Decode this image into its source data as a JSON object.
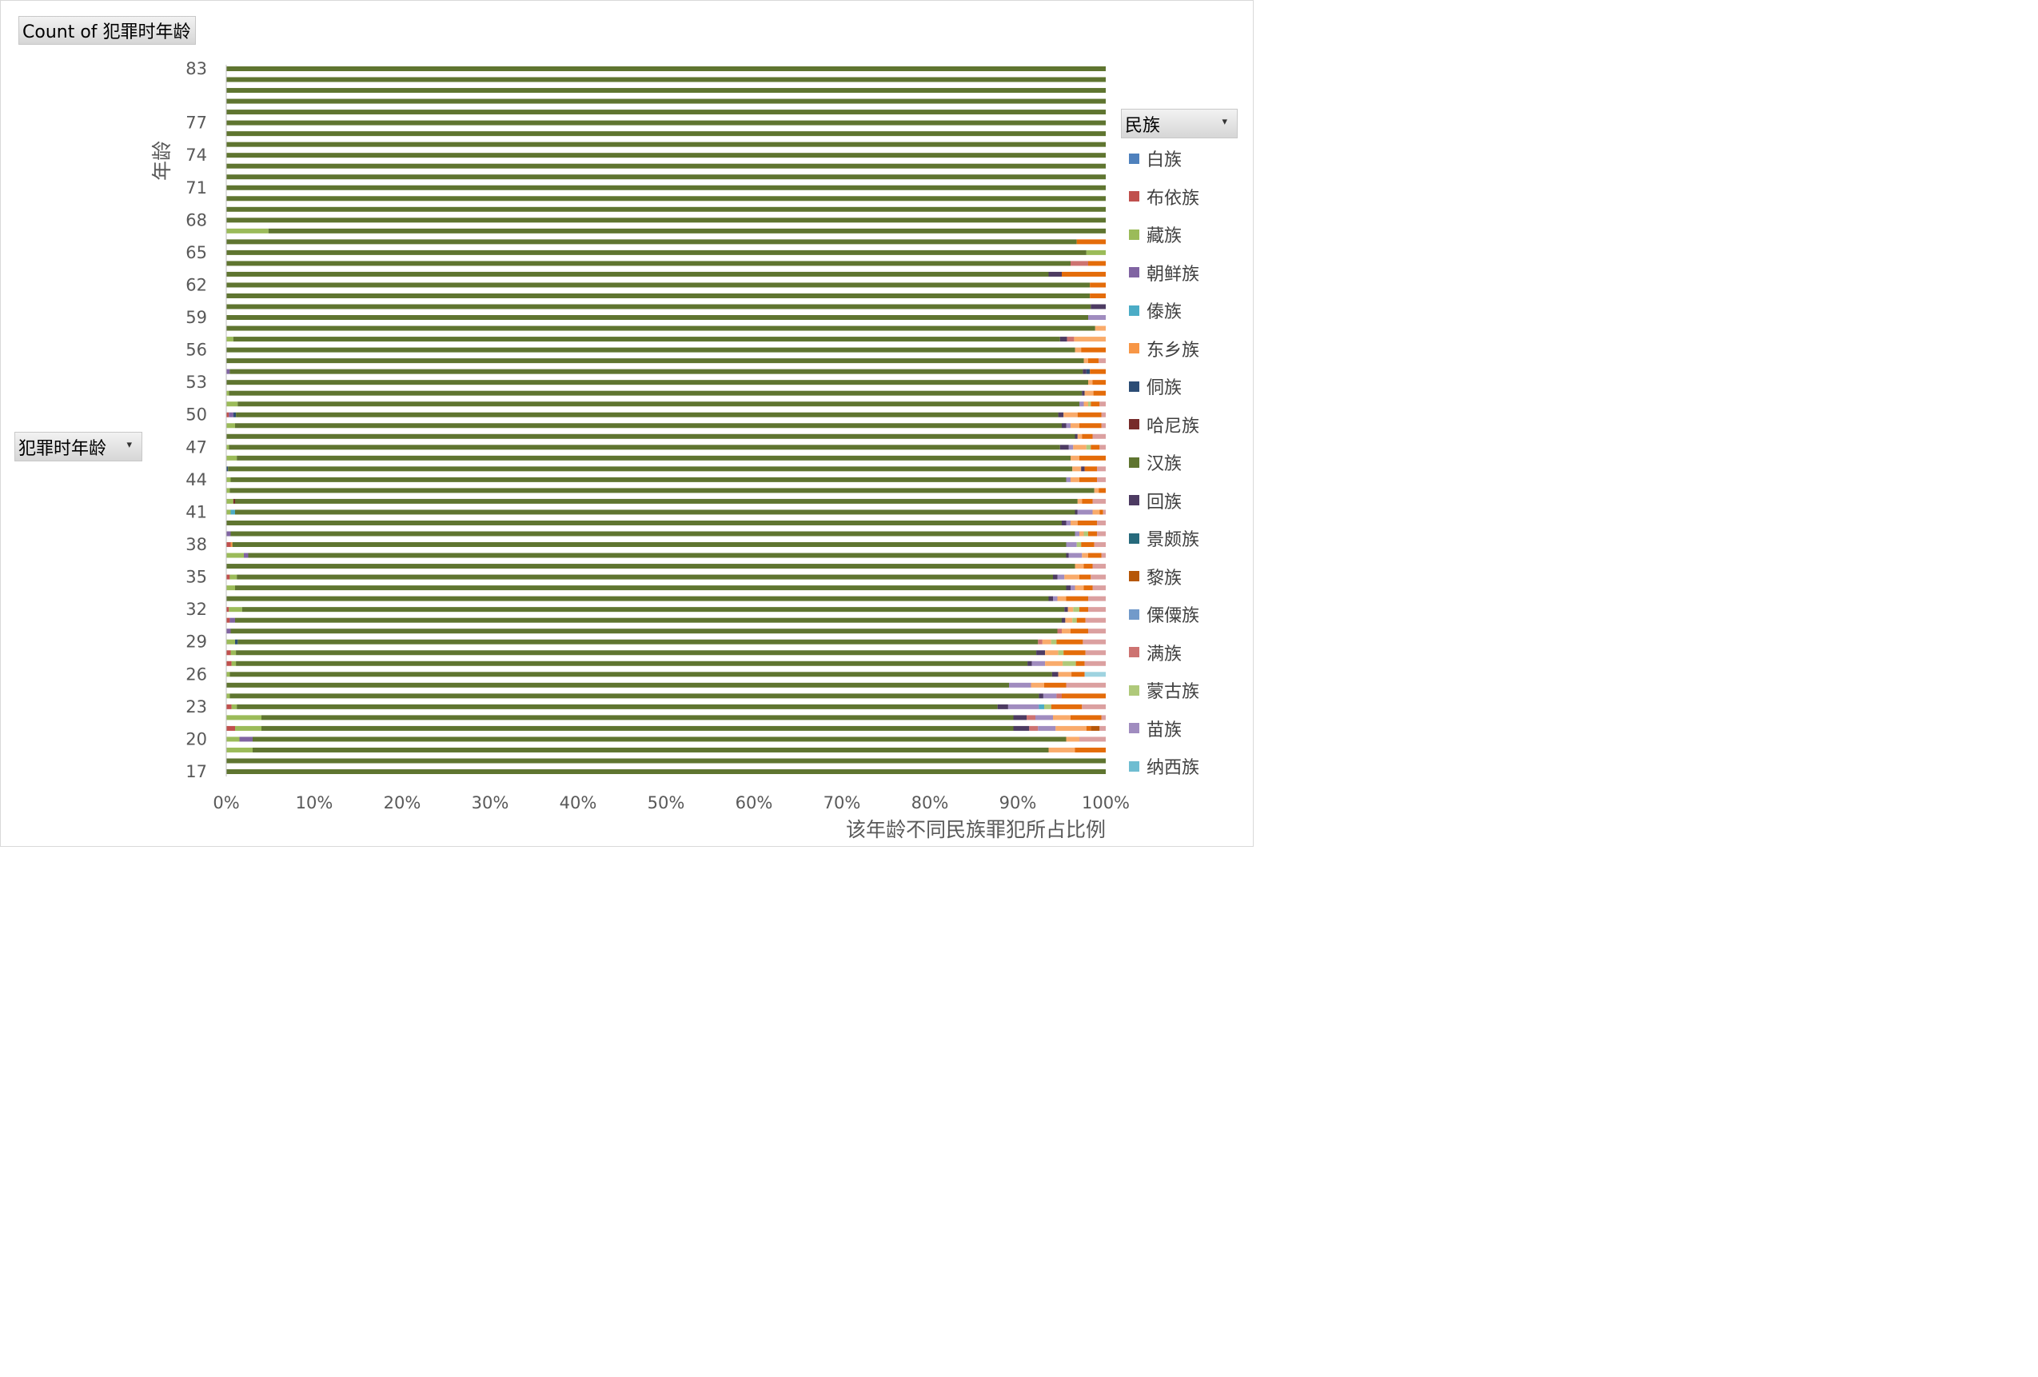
{
  "pivot": {
    "value_field": "Count of 犯罪时年龄",
    "row_field": "犯罪时年龄",
    "legend_field": "民族",
    "dropdown_glyph": "▾"
  },
  "chart_data": {
    "type": "bar",
    "orientation": "horizontal",
    "stacked": "percent",
    "xlabel": "该年龄不同民族罪犯所占比例",
    "ylabel": "年龄",
    "xlim": [
      0,
      1
    ],
    "xticks": [
      "0%",
      "10%",
      "20%",
      "30%",
      "40%",
      "50%",
      "60%",
      "70%",
      "80%",
      "90%",
      "100%"
    ],
    "yticks_shown": [
      "17",
      "20",
      "23",
      "26",
      "29",
      "32",
      "35",
      "38",
      "41",
      "44",
      "47",
      "50",
      "53",
      "56",
      "59",
      "62",
      "65",
      "68",
      "71",
      "74",
      "77",
      "83"
    ],
    "categories": [
      "17",
      "18",
      "19",
      "20",
      "21",
      "22",
      "23",
      "24",
      "25",
      "26",
      "27",
      "28",
      "29",
      "30",
      "31",
      "32",
      "33",
      "34",
      "35",
      "36",
      "37",
      "38",
      "39",
      "40",
      "41",
      "42",
      "43",
      "44",
      "45",
      "46",
      "47",
      "48",
      "49",
      "50",
      "51",
      "52",
      "53",
      "54",
      "55",
      "56",
      "57",
      "58",
      "59",
      "60",
      "61",
      "62",
      "63",
      "64",
      "65",
      "66",
      "67",
      "68",
      "69",
      "70",
      "71",
      "72",
      "73",
      "74",
      "75",
      "76",
      "77",
      "78",
      "79",
      "80",
      "81",
      "83"
    ],
    "legend": [
      "白族",
      "布依族",
      "藏族",
      "朝鲜族",
      "傣族",
      "东乡族",
      "侗族",
      "哈尼族",
      "汉族",
      "回族",
      "景颇族",
      "黎族",
      "傈僳族",
      "满族",
      "蒙古族",
      "苗族",
      "纳西族"
    ],
    "series": [
      {
        "name": "白族",
        "color": "#4f81bd"
      },
      {
        "name": "布依族",
        "color": "#c0504d"
      },
      {
        "name": "藏族",
        "color": "#9bbb59"
      },
      {
        "name": "朝鲜族",
        "color": "#8064a2"
      },
      {
        "name": "傣族",
        "color": "#4bacc6"
      },
      {
        "name": "东乡族",
        "color": "#f79646"
      },
      {
        "name": "侗族",
        "color": "#2c4d75"
      },
      {
        "name": "哈尼族",
        "color": "#772c2a"
      },
      {
        "name": "汉族",
        "color": "#5f7530"
      },
      {
        "name": "回族",
        "color": "#4d3b62"
      },
      {
        "name": "景颇族",
        "color": "#276a7c"
      },
      {
        "name": "黎族",
        "color": "#b65708"
      },
      {
        "name": "傈僳族",
        "color": "#729aca"
      },
      {
        "name": "满族",
        "color": "#cd7371"
      },
      {
        "name": "蒙古族",
        "color": "#afc97a"
      },
      {
        "name": "苗族",
        "color": "#a08cbf"
      },
      {
        "name": "纳西族",
        "color": "#6fbdd1"
      },
      {
        "name": "",
        "color": "#f9ab6b"
      },
      {
        "name": "",
        "color": "#e46c0a"
      },
      {
        "name": "",
        "color": "#dba0a0"
      },
      {
        "name": "",
        "color": "#c2afd8"
      },
      {
        "name": "",
        "color": "#9fd3e0"
      }
    ],
    "rows": {
      "17": [
        [
          8,
          1.0
        ]
      ],
      "18": [
        [
          8,
          1.0
        ]
      ],
      "19": [
        [
          2,
          0.03
        ],
        [
          8,
          0.905
        ],
        [
          17,
          0.03
        ],
        [
          18,
          0.035
        ]
      ],
      "20": [
        [
          2,
          0.015
        ],
        [
          3,
          0.015
        ],
        [
          8,
          0.925
        ],
        [
          17,
          0.015
        ],
        [
          19,
          0.03
        ]
      ],
      "21": [
        [
          1,
          0.01
        ],
        [
          2,
          0.03
        ],
        [
          8,
          0.855
        ],
        [
          9,
          0.018
        ],
        [
          13,
          0.01
        ],
        [
          15,
          0.02
        ],
        [
          17,
          0.035
        ],
        [
          18,
          0.005
        ],
        [
          11,
          0.01
        ],
        [
          19,
          0.007
        ]
      ],
      "22": [
        [
          2,
          0.04
        ],
        [
          8,
          0.855
        ],
        [
          9,
          0.015
        ],
        [
          13,
          0.01
        ],
        [
          15,
          0.02
        ],
        [
          17,
          0.02
        ],
        [
          18,
          0.035
        ],
        [
          19,
          0.005
        ]
      ],
      "23": [
        [
          1,
          0.006
        ],
        [
          2,
          0.006
        ],
        [
          8,
          0.865
        ],
        [
          9,
          0.012
        ],
        [
          15,
          0.035
        ],
        [
          4,
          0.006
        ],
        [
          14,
          0.008
        ],
        [
          18,
          0.035
        ],
        [
          19,
          0.027
        ]
      ],
      "24": [
        [
          2,
          0.004
        ],
        [
          8,
          0.92
        ],
        [
          9,
          0.005
        ],
        [
          15,
          0.015
        ],
        [
          13,
          0.006
        ],
        [
          18,
          0.05
        ]
      ],
      "25": [
        [
          8,
          0.89
        ],
        [
          15,
          0.025
        ],
        [
          17,
          0.015
        ],
        [
          18,
          0.025
        ],
        [
          19,
          0.045
        ]
      ],
      "26": [
        [
          2,
          0.004
        ],
        [
          8,
          0.935
        ],
        [
          9,
          0.007
        ],
        [
          17,
          0.015
        ],
        [
          18,
          0.015
        ],
        [
          21,
          0.024
        ]
      ],
      "27": [
        [
          1,
          0.006
        ],
        [
          2,
          0.005
        ],
        [
          8,
          0.9
        ],
        [
          9,
          0.005
        ],
        [
          15,
          0.015
        ],
        [
          17,
          0.02
        ],
        [
          14,
          0.015
        ],
        [
          18,
          0.01
        ],
        [
          19,
          0.024
        ]
      ],
      "28": [
        [
          1,
          0.005
        ],
        [
          2,
          0.006
        ],
        [
          8,
          0.91
        ],
        [
          9,
          0.01
        ],
        [
          17,
          0.015
        ],
        [
          14,
          0.006
        ],
        [
          18,
          0.025
        ],
        [
          19,
          0.023
        ]
      ],
      "29": [
        [
          2,
          0.01
        ],
        [
          6,
          0.003
        ],
        [
          8,
          0.91
        ],
        [
          13,
          0.005
        ],
        [
          17,
          0.01
        ],
        [
          14,
          0.006
        ],
        [
          18,
          0.03
        ],
        [
          19,
          0.026
        ]
      ],
      "30": [
        [
          3,
          0.005
        ],
        [
          8,
          0.94
        ],
        [
          13,
          0.005
        ],
        [
          17,
          0.01
        ],
        [
          18,
          0.02
        ],
        [
          19,
          0.02
        ]
      ],
      "31": [
        [
          1,
          0.004
        ],
        [
          3,
          0.006
        ],
        [
          8,
          0.94
        ],
        [
          9,
          0.004
        ],
        [
          17,
          0.008
        ],
        [
          14,
          0.005
        ],
        [
          18,
          0.01
        ],
        [
          19,
          0.023
        ]
      ],
      "32": [
        [
          1,
          0.003
        ],
        [
          2,
          0.015
        ],
        [
          8,
          0.935
        ],
        [
          9,
          0.004
        ],
        [
          17,
          0.006
        ],
        [
          14,
          0.007
        ],
        [
          18,
          0.01
        ],
        [
          19,
          0.02
        ]
      ],
      "33": [
        [
          8,
          0.935
        ],
        [
          9,
          0.005
        ],
        [
          15,
          0.005
        ],
        [
          17,
          0.01
        ],
        [
          18,
          0.025
        ],
        [
          19,
          0.02
        ]
      ],
      "34": [
        [
          2,
          0.01
        ],
        [
          8,
          0.945
        ],
        [
          9,
          0.005
        ],
        [
          15,
          0.005
        ],
        [
          17,
          0.01
        ],
        [
          18,
          0.01
        ],
        [
          19,
          0.015
        ]
      ],
      "35": [
        [
          1,
          0.004
        ],
        [
          2,
          0.008
        ],
        [
          8,
          0.928
        ],
        [
          9,
          0.005
        ],
        [
          15,
          0.008
        ],
        [
          17,
          0.017
        ],
        [
          18,
          0.013
        ],
        [
          19,
          0.017
        ]
      ],
      "36": [
        [
          8,
          0.965
        ],
        [
          17,
          0.01
        ],
        [
          18,
          0.01
        ],
        [
          19,
          0.015
        ]
      ],
      "37": [
        [
          2,
          0.02
        ],
        [
          3,
          0.005
        ],
        [
          8,
          0.93
        ],
        [
          9,
          0.003
        ],
        [
          15,
          0.015
        ],
        [
          17,
          0.007
        ],
        [
          18,
          0.015
        ],
        [
          19,
          0.005
        ]
      ],
      "38": [
        [
          1,
          0.005
        ],
        [
          5,
          0.002
        ],
        [
          8,
          0.948
        ],
        [
          15,
          0.012
        ],
        [
          14,
          0.005
        ],
        [
          18,
          0.015
        ],
        [
          19,
          0.013
        ]
      ],
      "39": [
        [
          3,
          0.005
        ],
        [
          8,
          0.96
        ],
        [
          15,
          0.005
        ],
        [
          17,
          0.005
        ],
        [
          14,
          0.005
        ],
        [
          18,
          0.01
        ],
        [
          19,
          0.01
        ]
      ],
      "40": [
        [
          8,
          0.95
        ],
        [
          9,
          0.005
        ],
        [
          15,
          0.005
        ],
        [
          17,
          0.008
        ],
        [
          18,
          0.022
        ],
        [
          19,
          0.01
        ]
      ],
      "41": [
        [
          2,
          0.005
        ],
        [
          4,
          0.005
        ],
        [
          8,
          0.955
        ],
        [
          9,
          0.003
        ],
        [
          15,
          0.017
        ],
        [
          17,
          0.008
        ],
        [
          18,
          0.004
        ],
        [
          19,
          0.003
        ]
      ],
      "42": [
        [
          2,
          0.008
        ],
        [
          7,
          0.002
        ],
        [
          8,
          0.958
        ],
        [
          17,
          0.005
        ],
        [
          18,
          0.012
        ],
        [
          19,
          0.015
        ]
      ],
      "43": [
        [
          2,
          0.004
        ],
        [
          8,
          0.983
        ],
        [
          17,
          0.005
        ],
        [
          18,
          0.008
        ]
      ],
      "44": [
        [
          2,
          0.005
        ],
        [
          8,
          0.95
        ],
        [
          15,
          0.005
        ],
        [
          17,
          0.01
        ],
        [
          18,
          0.02
        ],
        [
          19,
          0.01
        ]
      ],
      "45": [
        [
          6,
          0.002
        ],
        [
          8,
          0.96
        ],
        [
          17,
          0.01
        ],
        [
          9,
          0.004
        ],
        [
          18,
          0.014
        ],
        [
          19,
          0.01
        ]
      ],
      "46": [
        [
          2,
          0.012
        ],
        [
          8,
          0.948
        ],
        [
          17,
          0.01
        ],
        [
          18,
          0.03
        ]
      ],
      "47": [
        [
          2,
          0.003
        ],
        [
          8,
          0.945
        ],
        [
          9,
          0.01
        ],
        [
          15,
          0.005
        ],
        [
          17,
          0.015
        ],
        [
          14,
          0.005
        ],
        [
          18,
          0.01
        ],
        [
          19,
          0.007
        ]
      ],
      "48": [
        [
          8,
          0.965
        ],
        [
          9,
          0.003
        ],
        [
          17,
          0.005
        ],
        [
          18,
          0.012
        ],
        [
          19,
          0.015
        ]
      ],
      "49": [
        [
          2,
          0.01
        ],
        [
          8,
          0.94
        ],
        [
          9,
          0.005
        ],
        [
          15,
          0.005
        ],
        [
          17,
          0.01
        ],
        [
          18,
          0.025
        ],
        [
          19,
          0.005
        ]
      ],
      "50": [
        [
          1,
          0.003
        ],
        [
          3,
          0.005
        ],
        [
          6,
          0.003
        ],
        [
          8,
          0.935
        ],
        [
          9,
          0.006
        ],
        [
          17,
          0.016
        ],
        [
          18,
          0.027
        ],
        [
          19,
          0.005
        ]
      ],
      "51": [
        [
          2,
          0.013
        ],
        [
          8,
          0.957
        ],
        [
          15,
          0.005
        ],
        [
          17,
          0.005
        ],
        [
          14,
          0.003
        ],
        [
          18,
          0.01
        ],
        [
          19,
          0.007
        ]
      ],
      "52": [
        [
          2,
          0.003
        ],
        [
          8,
          0.97
        ],
        [
          9,
          0.003
        ],
        [
          17,
          0.01
        ],
        [
          18,
          0.014
        ]
      ],
      "53": [
        [
          8,
          0.98
        ],
        [
          17,
          0.005
        ],
        [
          18,
          0.015
        ]
      ],
      "54": [
        [
          3,
          0.004
        ],
        [
          8,
          0.97
        ],
        [
          9,
          0.004
        ],
        [
          6,
          0.004
        ],
        [
          18,
          0.018
        ]
      ],
      "55": [
        [
          8,
          0.975
        ],
        [
          17,
          0.005
        ],
        [
          18,
          0.012
        ],
        [
          19,
          0.008
        ]
      ],
      "56": [
        [
          8,
          0.965
        ],
        [
          17,
          0.007
        ],
        [
          18,
          0.028
        ]
      ],
      "57": [
        [
          2,
          0.008
        ],
        [
          8,
          0.94
        ],
        [
          9,
          0.008
        ],
        [
          13,
          0.008
        ],
        [
          17,
          0.036
        ]
      ],
      "58": [
        [
          8,
          0.988
        ],
        [
          17,
          0.012
        ]
      ],
      "59": [
        [
          8,
          0.98
        ],
        [
          15,
          0.02
        ]
      ],
      "60": [
        [
          8,
          0.983
        ],
        [
          9,
          0.017
        ]
      ],
      "61": [
        [
          8,
          0.982
        ],
        [
          18,
          0.018
        ]
      ],
      "62": [
        [
          8,
          0.982
        ],
        [
          18,
          0.018
        ]
      ],
      "63": [
        [
          8,
          0.935
        ],
        [
          9,
          0.015
        ],
        [
          18,
          0.05
        ]
      ],
      "64": [
        [
          8,
          0.96
        ],
        [
          13,
          0.02
        ],
        [
          18,
          0.02
        ]
      ],
      "65": [
        [
          8,
          0.978
        ],
        [
          2,
          0.022
        ]
      ],
      "66": [
        [
          8,
          0.967
        ],
        [
          18,
          0.033
        ]
      ],
      "67": [
        [
          2,
          0.048
        ],
        [
          8,
          0.952
        ]
      ],
      "68": [
        [
          8,
          1.0
        ]
      ],
      "69": [
        [
          8,
          1.0
        ]
      ],
      "70": [
        [
          8,
          1.0
        ]
      ],
      "71": [
        [
          8,
          1.0
        ]
      ],
      "72": [
        [
          8,
          1.0
        ]
      ],
      "73": [
        [
          8,
          1.0
        ]
      ],
      "74": [
        [
          8,
          1.0
        ]
      ],
      "75": [
        [
          8,
          1.0
        ]
      ],
      "76": [
        [
          8,
          1.0
        ]
      ],
      "77": [
        [
          8,
          1.0
        ]
      ],
      "78": [
        [
          8,
          1.0
        ]
      ],
      "79": [
        [
          8,
          1.0
        ]
      ],
      "80": [
        [
          8,
          1.0
        ]
      ],
      "81": [
        [
          8,
          1.0
        ]
      ],
      "83": [
        [
          8,
          1.0
        ]
      ]
    },
    "grid": false,
    "legend_position": "right"
  }
}
